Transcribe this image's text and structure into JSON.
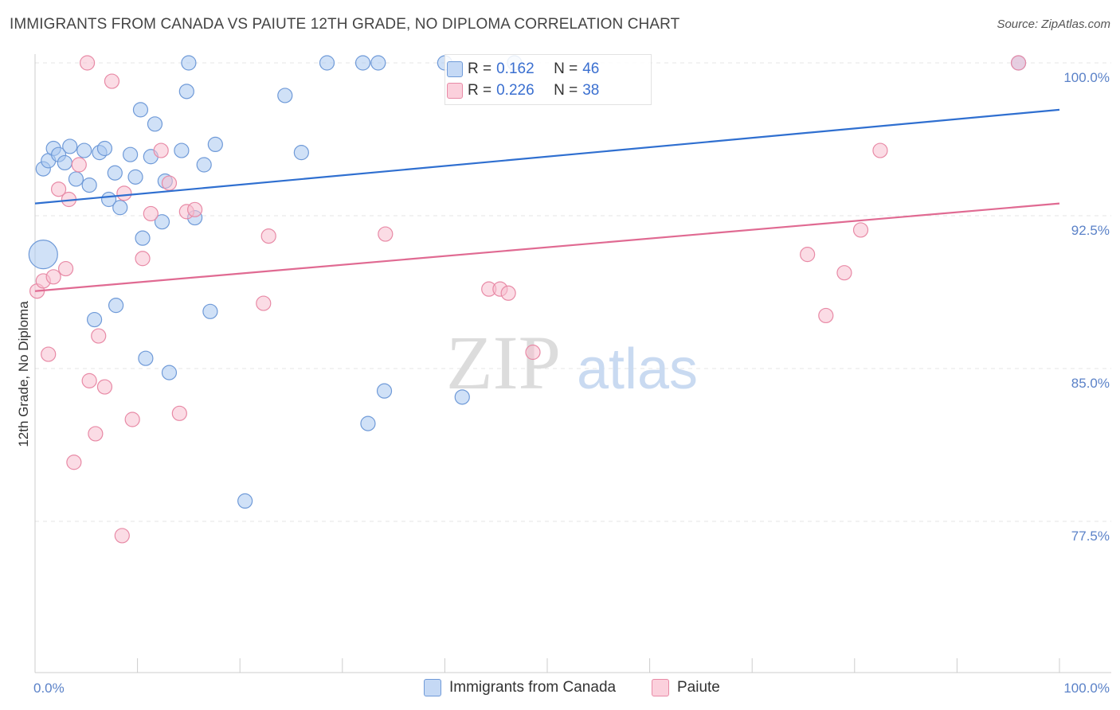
{
  "title": "IMMIGRANTS FROM CANADA VS PAIUTE 12TH GRADE, NO DIPLOMA CORRELATION CHART",
  "source": "Source: ZipAtlas.com",
  "watermark": {
    "zip": "ZIP",
    "atlas": "atlas"
  },
  "legend": {
    "r_label": "R =",
    "n_label": "N =",
    "rows": [
      {
        "r": "0.162",
        "n": "46"
      },
      {
        "r": "0.226",
        "n": "38"
      }
    ]
  },
  "bottom_legend": [
    "Immigrants from Canada",
    "Paiute"
  ],
  "colors": {
    "blue_fill": "#aac8f0",
    "blue_stroke": "#6f9ad8",
    "blue_line": "#2f6fd0",
    "pink_fill": "#f7bfd0",
    "pink_stroke": "#e88aa6",
    "pink_line": "#e06a92",
    "tick_text": "#5b82c8",
    "grid": "#e4e4e4"
  },
  "chart_data": {
    "type": "scatter",
    "title": "IMMIGRANTS FROM CANADA VS PAIUTE 12TH GRADE, NO DIPLOMA CORRELATION CHART",
    "xlabel": "",
    "ylabel": "12th Grade, No Diploma",
    "x_ticks": [
      "0.0%",
      "100.0%"
    ],
    "y_ticks": [
      "100.0%",
      "92.5%",
      "85.0%",
      "77.5%"
    ],
    "xlim": [
      0,
      100
    ],
    "ylim": [
      70.5,
      100.5
    ],
    "grid": "horizontal dashed",
    "legend_placement": "top-center",
    "series": [
      {
        "name": "Immigrants from Canada",
        "r": 0.162,
        "n": 46,
        "trend": {
          "x": [
            0,
            100
          ],
          "y": [
            93.1,
            97.7
          ]
        },
        "points": [
          [
            0.8,
            90.6,
            22
          ],
          [
            0.8,
            94.8,
            12
          ],
          [
            1.3,
            95.2,
            10
          ],
          [
            1.8,
            95.8,
            11
          ],
          [
            2.3,
            95.5,
            10
          ],
          [
            2.9,
            95.1,
            10
          ],
          [
            3.4,
            95.9,
            11
          ],
          [
            4.0,
            94.3,
            10
          ],
          [
            4.8,
            95.7,
            10
          ],
          [
            5.3,
            94.0,
            10
          ],
          [
            6.3,
            95.6,
            10
          ],
          [
            6.8,
            95.8,
            10
          ],
          [
            7.2,
            93.3,
            10
          ],
          [
            7.8,
            94.6,
            10
          ],
          [
            8.3,
            92.9,
            10
          ],
          [
            9.3,
            95.5,
            10
          ],
          [
            9.8,
            94.4,
            10
          ],
          [
            10.5,
            91.4,
            10
          ],
          [
            10.3,
            97.7,
            10
          ],
          [
            10.8,
            85.5,
            10
          ],
          [
            11.3,
            95.4,
            10
          ],
          [
            11.7,
            97.0,
            10
          ],
          [
            12.4,
            92.2,
            10
          ],
          [
            12.7,
            94.2,
            10
          ],
          [
            13.1,
            84.8,
            10
          ],
          [
            14.3,
            95.7,
            10
          ],
          [
            14.8,
            98.6,
            10
          ],
          [
            15.0,
            100.0,
            10
          ],
          [
            15.6,
            92.4,
            10
          ],
          [
            16.5,
            95.0,
            10
          ],
          [
            17.1,
            87.8,
            10
          ],
          [
            17.6,
            96.0,
            10
          ],
          [
            20.5,
            78.5,
            10
          ],
          [
            24.4,
            98.4,
            10
          ],
          [
            26.0,
            95.6,
            10
          ],
          [
            28.5,
            100.0,
            10
          ],
          [
            32.0,
            100.0,
            10
          ],
          [
            33.5,
            100.0,
            10
          ],
          [
            32.5,
            82.3,
            10
          ],
          [
            34.1,
            83.9,
            10
          ],
          [
            40.0,
            100.0,
            10
          ],
          [
            41.7,
            83.6,
            10
          ],
          [
            46.8,
            100.0,
            10
          ],
          [
            96.0,
            100.0,
            10
          ],
          [
            5.8,
            87.4,
            10
          ],
          [
            7.9,
            88.1,
            10
          ]
        ]
      },
      {
        "name": "Paiute",
        "r": 0.226,
        "n": 38,
        "trend": {
          "x": [
            0,
            100
          ],
          "y": [
            88.8,
            93.1
          ]
        },
        "points": [
          [
            0.2,
            88.8,
            10
          ],
          [
            0.8,
            89.3,
            10
          ],
          [
            1.3,
            85.7,
            10
          ],
          [
            1.8,
            89.5,
            10
          ],
          [
            2.3,
            93.8,
            10
          ],
          [
            3.0,
            89.9,
            10
          ],
          [
            3.3,
            93.3,
            10
          ],
          [
            3.8,
            80.4,
            10
          ],
          [
            4.3,
            95.0,
            10
          ],
          [
            5.1,
            100.0,
            10
          ],
          [
            5.3,
            84.4,
            10
          ],
          [
            5.9,
            81.8,
            10
          ],
          [
            6.2,
            86.6,
            10
          ],
          [
            6.8,
            84.1,
            10
          ],
          [
            7.5,
            99.1,
            10
          ],
          [
            8.5,
            76.8,
            10
          ],
          [
            8.7,
            93.6,
            10
          ],
          [
            9.5,
            82.5,
            10
          ],
          [
            10.5,
            90.4,
            10
          ],
          [
            11.3,
            92.6,
            10
          ],
          [
            12.3,
            95.7,
            10
          ],
          [
            13.1,
            94.1,
            10
          ],
          [
            14.1,
            82.8,
            10
          ],
          [
            14.8,
            92.7,
            10
          ],
          [
            15.6,
            92.8,
            10
          ],
          [
            22.3,
            88.2,
            10
          ],
          [
            22.8,
            91.5,
            10
          ],
          [
            34.2,
            91.6,
            10
          ],
          [
            44.3,
            88.9,
            10
          ],
          [
            45.4,
            88.9,
            10
          ],
          [
            46.2,
            88.7,
            10
          ],
          [
            48.6,
            85.8,
            10
          ],
          [
            75.4,
            90.6,
            10
          ],
          [
            77.2,
            87.6,
            10
          ],
          [
            79.0,
            89.7,
            10
          ],
          [
            80.6,
            91.8,
            10
          ],
          [
            82.5,
            95.7,
            10
          ],
          [
            96.0,
            100.0,
            10
          ]
        ]
      }
    ]
  }
}
